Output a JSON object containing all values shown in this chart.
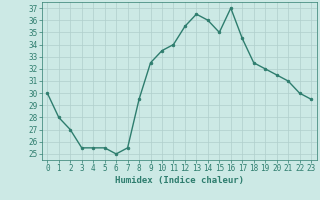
{
  "x": [
    0,
    1,
    2,
    3,
    4,
    5,
    6,
    7,
    8,
    9,
    10,
    11,
    12,
    13,
    14,
    15,
    16,
    17,
    18,
    19,
    20,
    21,
    22,
    23
  ],
  "y": [
    30,
    28,
    27,
    25.5,
    25.5,
    25.5,
    25,
    25.5,
    29.5,
    32.5,
    33.5,
    34,
    35.5,
    36.5,
    36,
    35,
    37,
    34.5,
    32.5,
    32,
    31.5,
    31,
    30,
    29.5
  ],
  "line_color": "#2e7d6e",
  "marker": "o",
  "markersize": 2.0,
  "linewidth": 1.0,
  "bg_color": "#cce9e5",
  "grid_color": "#b0cfcc",
  "xlabel": "Humidex (Indice chaleur)",
  "xlim": [
    -0.5,
    23.5
  ],
  "ylim": [
    24.5,
    37.5
  ],
  "yticks": [
    25,
    26,
    27,
    28,
    29,
    30,
    31,
    32,
    33,
    34,
    35,
    36,
    37
  ],
  "xticks": [
    0,
    1,
    2,
    3,
    4,
    5,
    6,
    7,
    8,
    9,
    10,
    11,
    12,
    13,
    14,
    15,
    16,
    17,
    18,
    19,
    20,
    21,
    22,
    23
  ],
  "tick_color": "#2e7d6e",
  "label_color": "#2e7d6e",
  "xlabel_fontsize": 6.5,
  "tick_fontsize": 5.5
}
